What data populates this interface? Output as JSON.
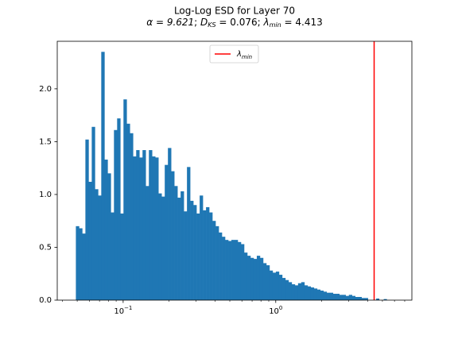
{
  "chart_data": {
    "type": "bar",
    "title": "Log-Log ESD for Layer 70",
    "subtitle": {
      "alpha_label": "α = 9.621",
      "dks_label": "D",
      "dks_sub": "KS",
      "dks_value": " = 0.076",
      "lambda_label": "λ",
      "lambda_sub": "min",
      "lambda_value": " = 4.413",
      "separator": "; "
    },
    "xscale": "log",
    "xlim": [
      0.037,
      7.8
    ],
    "ylim": [
      0,
      2.45
    ],
    "x_ticks": [
      {
        "value": 0.1,
        "base": "10",
        "exp": "−1"
      },
      {
        "value": 1,
        "base": "10",
        "exp": "0"
      }
    ],
    "y_ticks": [
      {
        "value": 0.0,
        "label": "0.0"
      },
      {
        "value": 0.5,
        "label": "0.5"
      },
      {
        "value": 1.0,
        "label": "1.0"
      },
      {
        "value": 1.5,
        "label": "1.5"
      },
      {
        "value": 2.0,
        "label": "2.0"
      }
    ],
    "bar_color": "#1f77b4",
    "bins": {
      "start": 0.049,
      "step_log10": 0.0208,
      "counts": [
        0.7,
        0.68,
        0.63,
        1.52,
        1.12,
        1.64,
        1.05,
        0.99,
        2.35,
        1.33,
        1.2,
        0.83,
        1.61,
        1.72,
        0.82,
        1.9,
        1.67,
        1.58,
        1.36,
        1.42,
        1.35,
        1.42,
        1.08,
        1.42,
        1.36,
        1.35,
        1.01,
        0.98,
        1.28,
        1.44,
        1.22,
        1.08,
        0.97,
        1.03,
        0.84,
        1.26,
        0.94,
        0.9,
        0.82,
        0.99,
        0.85,
        0.88,
        0.83,
        0.75,
        0.7,
        0.64,
        0.6,
        0.57,
        0.56,
        0.57,
        0.57,
        0.55,
        0.53,
        0.45,
        0.42,
        0.4,
        0.39,
        0.42,
        0.4,
        0.35,
        0.33,
        0.28,
        0.26,
        0.27,
        0.24,
        0.21,
        0.19,
        0.17,
        0.15,
        0.14,
        0.16,
        0.17,
        0.14,
        0.13,
        0.12,
        0.11,
        0.1,
        0.09,
        0.08,
        0.07,
        0.07,
        0.06,
        0.06,
        0.05,
        0.05,
        0.04,
        0.05,
        0.04,
        0.03,
        0.03,
        0.02,
        0.02
      ]
    },
    "sparse_bars": [
      {
        "x": 4.55,
        "value": 0.015
      },
      {
        "x": 5.1,
        "value": 0.01
      }
    ],
    "vline": {
      "x": 4.413,
      "color": "#ff0000"
    },
    "legend": {
      "label": "λ",
      "label_sub": "min",
      "position": "top-center"
    }
  }
}
